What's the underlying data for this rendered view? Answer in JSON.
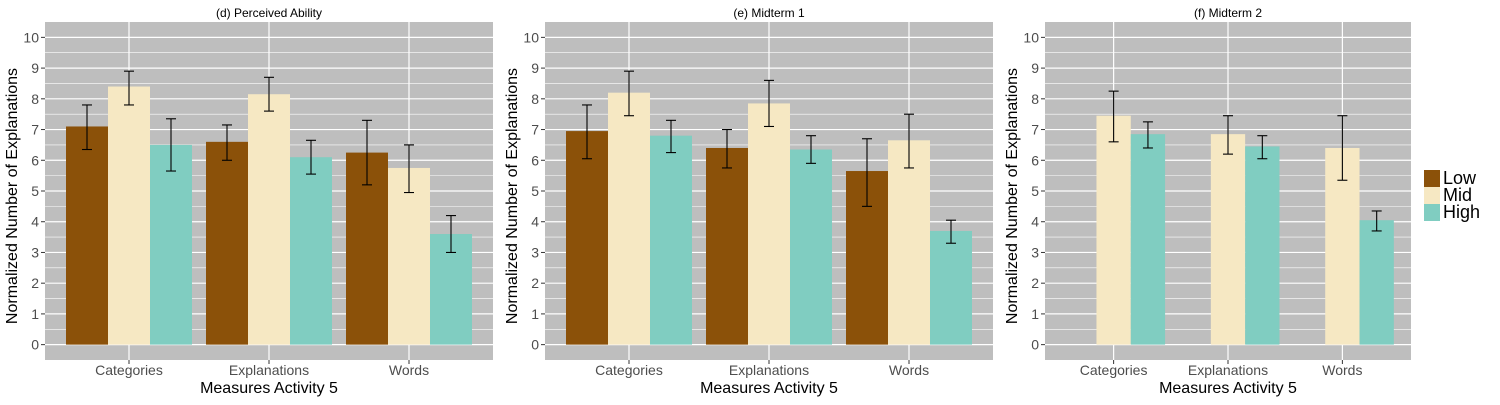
{
  "chart_data": [
    {
      "type": "bar",
      "title": "(d) Perceived Ability",
      "xlabel": "Measures Activity 5",
      "ylabel": "Normalized Number of Explanations",
      "categories": [
        "Categories",
        "Explanations",
        "Words"
      ],
      "ylim": [
        0,
        10
      ],
      "yticks": [
        0,
        1,
        2,
        3,
        4,
        5,
        6,
        7,
        8,
        9,
        10
      ],
      "grid": true,
      "series": [
        {
          "name": "Low",
          "values": [
            7.1,
            6.6,
            6.25
          ],
          "err_low": [
            6.35,
            6.0,
            5.2
          ],
          "err_high": [
            7.8,
            7.15,
            7.3
          ]
        },
        {
          "name": "Mid",
          "values": [
            8.4,
            8.15,
            5.75
          ],
          "err_low": [
            7.8,
            7.6,
            4.95
          ],
          "err_high": [
            8.9,
            8.7,
            6.5
          ]
        },
        {
          "name": "High",
          "values": [
            6.5,
            6.1,
            3.6
          ],
          "err_low": [
            5.65,
            5.55,
            3.0
          ],
          "err_high": [
            7.35,
            6.65,
            4.2
          ]
        }
      ]
    },
    {
      "type": "bar",
      "title": "(e) Midterm 1",
      "xlabel": "Measures Activity 5",
      "ylabel": "Normalized Number of Explanations",
      "categories": [
        "Categories",
        "Explanations",
        "Words"
      ],
      "ylim": [
        0,
        10
      ],
      "yticks": [
        0,
        1,
        2,
        3,
        4,
        5,
        6,
        7,
        8,
        9,
        10
      ],
      "grid": true,
      "series": [
        {
          "name": "Low",
          "values": [
            6.95,
            6.4,
            5.65
          ],
          "err_low": [
            6.05,
            5.75,
            4.5
          ],
          "err_high": [
            7.8,
            7.0,
            6.7
          ]
        },
        {
          "name": "Mid",
          "values": [
            8.2,
            7.85,
            6.65
          ],
          "err_low": [
            7.45,
            7.1,
            5.75
          ],
          "err_high": [
            8.9,
            8.6,
            7.5
          ]
        },
        {
          "name": "High",
          "values": [
            6.8,
            6.35,
            3.7
          ],
          "err_low": [
            6.25,
            5.9,
            3.3
          ],
          "err_high": [
            7.3,
            6.8,
            4.05
          ]
        }
      ]
    },
    {
      "type": "bar",
      "title": "(f) Midterm 2",
      "xlabel": "Measures Activity 5",
      "ylabel": "Normalized Number of Explanations",
      "categories": [
        "Categories",
        "Explanations",
        "Words"
      ],
      "ylim": [
        0,
        10
      ],
      "yticks": [
        0,
        1,
        2,
        3,
        4,
        5,
        6,
        7,
        8,
        9,
        10
      ],
      "grid": true,
      "series": [
        {
          "name": "Low",
          "values": [
            null,
            null,
            null
          ],
          "err_low": [
            null,
            null,
            null
          ],
          "err_high": [
            null,
            null,
            null
          ]
        },
        {
          "name": "Mid",
          "values": [
            7.45,
            6.85,
            6.4
          ],
          "err_low": [
            6.6,
            6.2,
            5.35
          ],
          "err_high": [
            8.25,
            7.45,
            7.45
          ]
        },
        {
          "name": "High",
          "values": [
            6.85,
            6.45,
            4.05
          ],
          "err_low": [
            6.4,
            6.05,
            3.7
          ],
          "err_high": [
            7.25,
            6.8,
            4.35
          ]
        }
      ]
    }
  ],
  "legend": {
    "position": "right",
    "items": [
      {
        "label": "Low",
        "color": "#8b5109"
      },
      {
        "label": "Mid",
        "color": "#f6e8c3"
      },
      {
        "label": "High",
        "color": "#80cdc1"
      }
    ]
  },
  "colors": {
    "panel_background": "#bebebe",
    "grid": "#ffffff",
    "Low": "#8b5109",
    "Mid": "#f6e8c3",
    "High": "#80cdc1"
  }
}
